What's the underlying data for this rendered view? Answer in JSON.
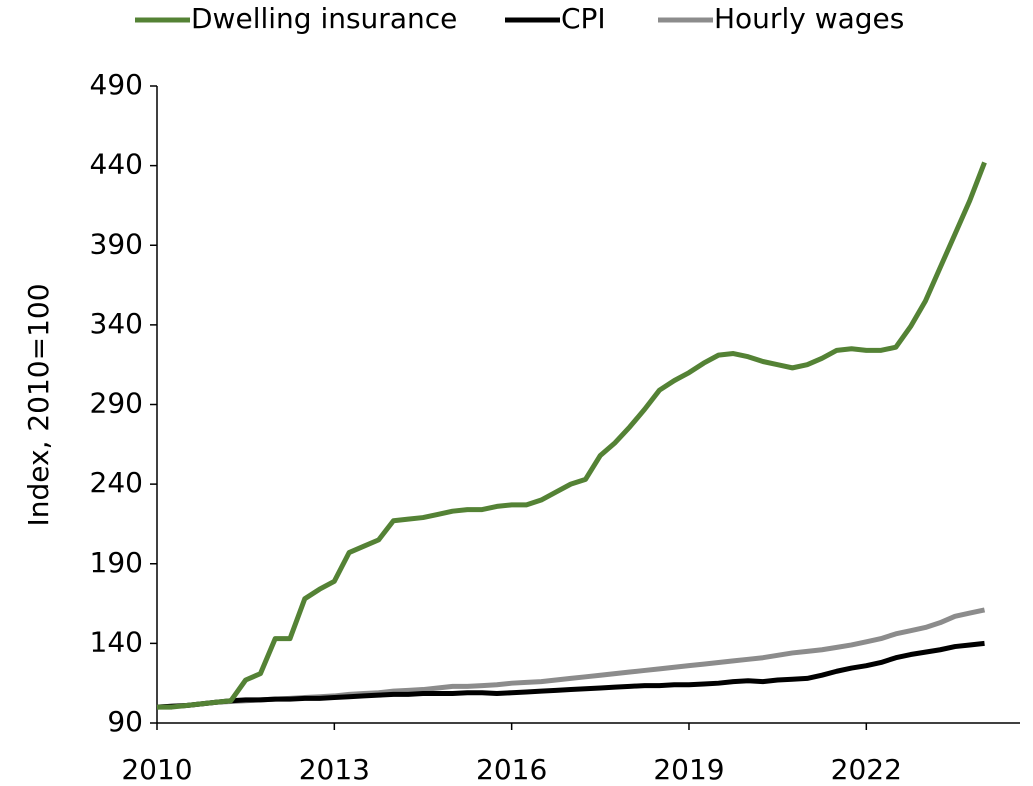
{
  "chart_data": {
    "type": "line",
    "ylabel": "Index, 2010=100",
    "x": [
      2010,
      2010.25,
      2010.5,
      2010.75,
      2011,
      2011.25,
      2011.5,
      2011.75,
      2012,
      2012.25,
      2012.5,
      2012.75,
      2013,
      2013.25,
      2013.5,
      2013.75,
      2014,
      2014.25,
      2014.5,
      2014.75,
      2015,
      2015.25,
      2015.5,
      2015.75,
      2016,
      2016.25,
      2016.5,
      2016.75,
      2017,
      2017.25,
      2017.5,
      2017.75,
      2018,
      2018.25,
      2018.5,
      2018.75,
      2019,
      2019.25,
      2019.5,
      2019.75,
      2020,
      2020.25,
      2020.5,
      2020.75,
      2021,
      2021.25,
      2021.5,
      2021.75,
      2022,
      2022.25,
      2022.5,
      2022.75,
      2023,
      2023.25,
      2023.5,
      2023.75,
      2024
    ],
    "series": [
      {
        "name": "Dwelling insurance",
        "color": "#548235",
        "values": [
          100,
          100,
          101,
          102,
          103,
          104,
          117,
          121,
          143,
          143,
          168,
          174,
          179,
          197,
          201,
          205,
          217,
          218,
          219,
          221,
          223,
          224,
          224,
          226,
          227,
          227,
          230,
          235,
          240,
          243,
          258,
          266,
          276,
          287,
          299,
          305,
          310,
          316,
          321,
          322,
          320,
          317,
          315,
          313,
          315,
          319,
          324,
          325,
          324,
          324,
          326,
          339,
          355,
          376,
          397,
          418,
          442
        ]
      },
      {
        "name": "CPI",
        "color": "#000000",
        "values": [
          100,
          100.5,
          101,
          102,
          103,
          104,
          104.5,
          104.5,
          105,
          105,
          105.5,
          105.5,
          106,
          106.5,
          107,
          107.5,
          108,
          108,
          108.5,
          108.5,
          108.5,
          109,
          109,
          108.5,
          109,
          109.5,
          110,
          110.5,
          111,
          111.5,
          112,
          112.5,
          113,
          113.5,
          113.5,
          114,
          114,
          114.5,
          115,
          116,
          116.5,
          116,
          117,
          117.5,
          118,
          120,
          122.5,
          124.5,
          126,
          128,
          131,
          133,
          134.5,
          136,
          138,
          139,
          140
        ]
      },
      {
        "name": "Hourly wages",
        "color": "#8c8c8c",
        "values": [
          100,
          100.5,
          101,
          102,
          103,
          103.5,
          104,
          104.5,
          105,
          105.5,
          106,
          106.5,
          107,
          108,
          108.5,
          109,
          110,
          110.5,
          111,
          112,
          113,
          113,
          113.5,
          114,
          115,
          115.5,
          116,
          117,
          118,
          119,
          120,
          121,
          122,
          123,
          124,
          125,
          126,
          127,
          128,
          129,
          130,
          131,
          132.5,
          134,
          135,
          136,
          137.5,
          139,
          141,
          143,
          146,
          148,
          150,
          153,
          157,
          159,
          161
        ]
      }
    ],
    "xlim": [
      2010,
      2024.6
    ],
    "xticks": [
      2010,
      2013,
      2016,
      2019,
      2022
    ],
    "ylim": [
      90,
      490
    ],
    "yticks": [
      90,
      140,
      190,
      240,
      290,
      340,
      390,
      440,
      490
    ],
    "legend": "top"
  }
}
